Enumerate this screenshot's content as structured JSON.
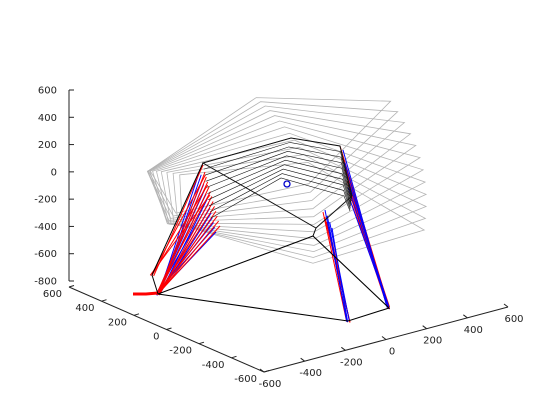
{
  "chart_data": {
    "type": "line",
    "projection": "3d",
    "title": "",
    "xlabel": "",
    "ylabel": "",
    "zlabel": "",
    "grid": false,
    "legend": "none",
    "axes": {
      "z": {
        "range": [
          -800,
          600
        ],
        "ticks": [
          600,
          400,
          200,
          0,
          -200,
          -400,
          -600,
          -800
        ],
        "tick_labels": [
          "600",
          "400",
          "200",
          "0",
          "-200",
          "-400",
          "-600",
          "-800"
        ]
      },
      "y": {
        "range": [
          -600,
          600
        ],
        "ticks": [
          600,
          400,
          200,
          0,
          -200,
          -400,
          -600
        ],
        "tick_labels": [
          "600",
          "400",
          "200",
          "0",
          "-200",
          "-400",
          "-600"
        ]
      },
      "x": {
        "range": [
          -600,
          600
        ],
        "ticks": [
          -600,
          -400,
          -200,
          0,
          200,
          400,
          600
        ],
        "tick_labels": [
          "-600",
          "-400",
          "-200",
          "0",
          "200",
          "400",
          "600"
        ]
      }
    },
    "colors": {
      "axis": "#222222",
      "base_platform": "#000000",
      "ghost_platforms": "#b4b4b4",
      "moving_platform": "#111111",
      "legs_a": "#0000ff",
      "legs_b": "#ff0000",
      "center_marker": "#0000cc"
    },
    "series": [
      {
        "role": "base_platform",
        "points": [
          [
            -380,
            380,
            -800
          ],
          [
            350,
            580,
            -800
          ],
          [
            420,
            -420,
            -800
          ],
          [
            -180,
            -560,
            -800
          ]
        ]
      },
      {
        "role": "moving_platform",
        "points": [
          [
            -320,
            320,
            0
          ],
          [
            250,
            400,
            60
          ],
          [
            300,
            -260,
            20
          ],
          [
            -120,
            -380,
            -60
          ]
        ]
      },
      {
        "role": "legs",
        "values": "dense bundle of blue and red actuator lines from each base corner to the moving platform"
      },
      {
        "role": "ghost_platforms",
        "count": 12,
        "values": "grey outlines of the platform at successive poses"
      },
      {
        "role": "center_marker",
        "points": [
          [
            0,
            0,
            0
          ]
        ]
      }
    ]
  }
}
